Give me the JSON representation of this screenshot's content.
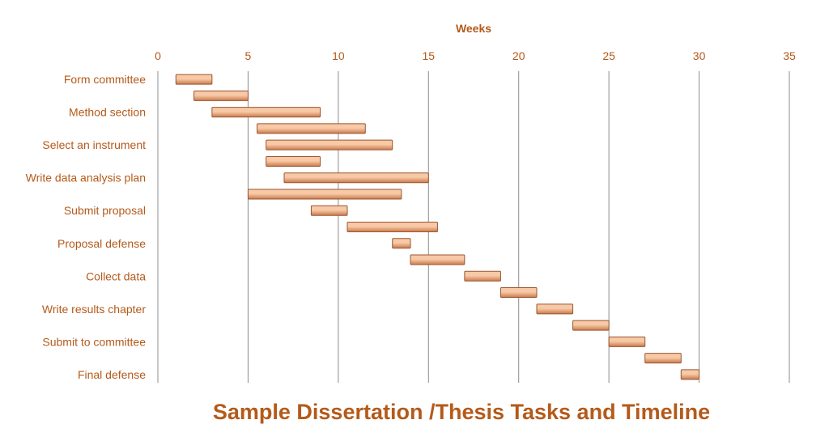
{
  "chart_data": {
    "type": "bar",
    "orientation": "horizontal",
    "stacked": true,
    "title": "Sample Dissertation /Thesis Tasks and Timeline",
    "xlabel": "Weeks",
    "xlim": [
      0,
      35
    ],
    "xticks": [
      0,
      5,
      10,
      15,
      20,
      25,
      30,
      35
    ],
    "grid": "vertical",
    "x_axis_position": "top",
    "categories": [
      "Form committee",
      "Method section",
      "Select an instrument",
      "Write data analysis plan",
      "Submit proposal",
      "Proposal defense",
      "Collect data",
      "Write results chapter",
      "Submit to committee",
      "Final defense"
    ],
    "bars": [
      {
        "start": 1,
        "end": 3
      },
      {
        "start": 2,
        "end": 5
      },
      {
        "start": 3,
        "end": 9
      },
      {
        "start": 5.5,
        "end": 11.5
      },
      {
        "start": 6,
        "end": 13
      },
      {
        "start": 6,
        "end": 9
      },
      {
        "start": 7,
        "end": 15
      },
      {
        "start": 5,
        "end": 13.5
      },
      {
        "start": 8.5,
        "end": 10.5
      },
      {
        "start": 10.5,
        "end": 15.5
      },
      {
        "start": 13,
        "end": 14
      },
      {
        "start": 14,
        "end": 17
      },
      {
        "start": 17,
        "end": 19
      },
      {
        "start": 19,
        "end": 21
      },
      {
        "start": 21,
        "end": 23
      },
      {
        "start": 23,
        "end": 25
      },
      {
        "start": 25,
        "end": 27
      },
      {
        "start": 27,
        "end": 29
      },
      {
        "start": 29,
        "end": 30
      }
    ],
    "colors": {
      "text": "#b45a1a",
      "bar_light": "#f7c9a6",
      "bar_dark": "#c97a4c",
      "bar_border": "#9a5630",
      "grid": "#8c8c8c"
    }
  }
}
